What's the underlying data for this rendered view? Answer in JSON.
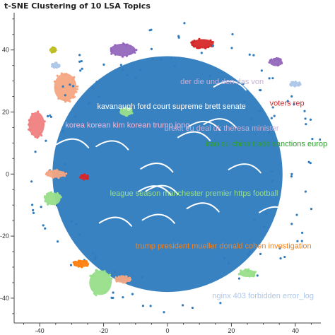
{
  "chart_data": {
    "type": "scatter",
    "title": "t-SNE Clustering of 10 LSA Topics",
    "xlabel": "",
    "ylabel": "",
    "xlim": [
      -48,
      48
    ],
    "ylim": [
      -48,
      52
    ],
    "xticks": [
      -40,
      -20,
      0,
      20,
      40
    ],
    "yticks": [
      -40,
      -20,
      0,
      20,
      40
    ],
    "x_tick_labels": [
      "-40",
      "-20",
      "0",
      "20",
      "40"
    ],
    "y_tick_labels": [
      "-40",
      "-20",
      "0",
      "20",
      "40"
    ],
    "grid": false,
    "legend": "none",
    "main_color": "#2e7bbf",
    "main_cluster": {
      "cx": 2,
      "cy": 2,
      "r": 40
    },
    "series": [
      {
        "color": "#2e7bbf",
        "clusters": [
          {
            "x": 0,
            "y": 0,
            "rx": 36,
            "ry": 38
          }
        ]
      },
      {
        "color": "#f4a582",
        "clusters": [
          {
            "x": -32,
            "y": 28,
            "rx": 3.5,
            "ry": 4.5
          },
          {
            "x": -35,
            "y": 0,
            "rx": 3,
            "ry": 1.2
          },
          {
            "x": -14,
            "y": -34,
            "rx": 2.5,
            "ry": 1
          }
        ]
      },
      {
        "color": "#f08080",
        "clusters": [
          {
            "x": -41,
            "y": 16,
            "rx": 2.5,
            "ry": 4
          }
        ]
      },
      {
        "color": "#98df8a",
        "clusters": [
          {
            "x": -36,
            "y": -8,
            "rx": 2.5,
            "ry": 2
          },
          {
            "x": -21,
            "y": -35,
            "rx": 3.5,
            "ry": 4
          },
          {
            "x": -13,
            "y": 20,
            "rx": 2,
            "ry": 1.2
          },
          {
            "x": 25,
            "y": -32,
            "rx": 2.5,
            "ry": 1.2
          }
        ]
      },
      {
        "color": "#9467bd",
        "clusters": [
          {
            "x": -14,
            "y": 40,
            "rx": 4,
            "ry": 2
          },
          {
            "x": 34,
            "y": 36,
            "rx": 2,
            "ry": 1.2
          }
        ]
      },
      {
        "color": "#d62728",
        "clusters": [
          {
            "x": 11,
            "y": 42,
            "rx": 3.5,
            "ry": 1.5
          },
          {
            "x": -26,
            "y": -1,
            "rx": 1.2,
            "ry": 0.8
          }
        ]
      },
      {
        "color": "#ff7f0e",
        "clusters": [
          {
            "x": -27,
            "y": -29,
            "rx": 2.5,
            "ry": 1
          }
        ]
      },
      {
        "color": "#aec7e8",
        "clusters": [
          {
            "x": -35,
            "y": 35,
            "rx": 1.2,
            "ry": 0.8
          },
          {
            "x": 40,
            "y": 29,
            "rx": 1.5,
            "ry": 0.8
          }
        ]
      },
      {
        "color": "#bcbd22",
        "clusters": [
          {
            "x": -36,
            "y": 40,
            "rx": 1,
            "ry": 0.8
          }
        ]
      }
    ],
    "annotations": [
      {
        "text": "der die und den das von",
        "x": 4,
        "y": 29,
        "color": "#c5b0d5"
      },
      {
        "text": "kavanaugh ford court supreme brett senate",
        "x": -22,
        "y": 21,
        "color": "#ffffff"
      },
      {
        "text": "voters rep",
        "x": 32,
        "y": 22,
        "color": "#d62728"
      },
      {
        "text": "korea korean kim korean trump jong",
        "x": -32,
        "y": 15,
        "color": "#f7b6d2"
      },
      {
        "text": "brexit eu deal uk theresa minister",
        "x": -1,
        "y": 14,
        "color": "#c5b0d5"
      },
      {
        "text": "iran eu china trade sanctions europ",
        "x": 12,
        "y": 9,
        "color": "#2ca02c"
      },
      {
        "text": "league season manchester premier https football",
        "x": -18,
        "y": -7,
        "color": "#98df8a"
      },
      {
        "text": "trump president mueller donald cohen investigation",
        "x": -10,
        "y": -24,
        "color": "#ff7f0e"
      },
      {
        "text": "nginx 403 forbidden error_log",
        "x": 14,
        "y": -40,
        "color": "#aec7e8"
      }
    ]
  }
}
